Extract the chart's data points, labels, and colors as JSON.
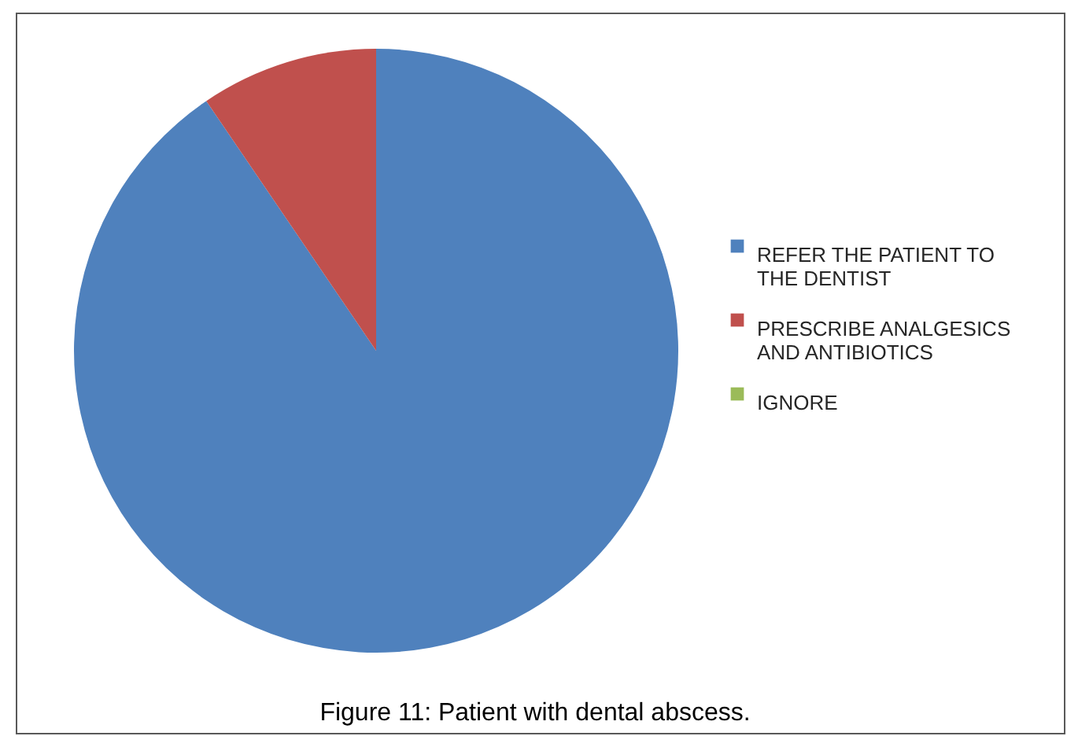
{
  "chart_data": {
    "type": "pie",
    "categories": [
      "REFER THE PATIENT TO THE DENTIST",
      "PRESCRIBE ANALGESICS AND ANTIBIOTICS",
      "IGNORE"
    ],
    "values": [
      90.5,
      9.5,
      0
    ],
    "colors": [
      "#4f81bd",
      "#c0504d",
      "#9bbb59"
    ],
    "legend": "right",
    "annotations": [
      "Figure 11: Patient with dental abscess."
    ]
  }
}
